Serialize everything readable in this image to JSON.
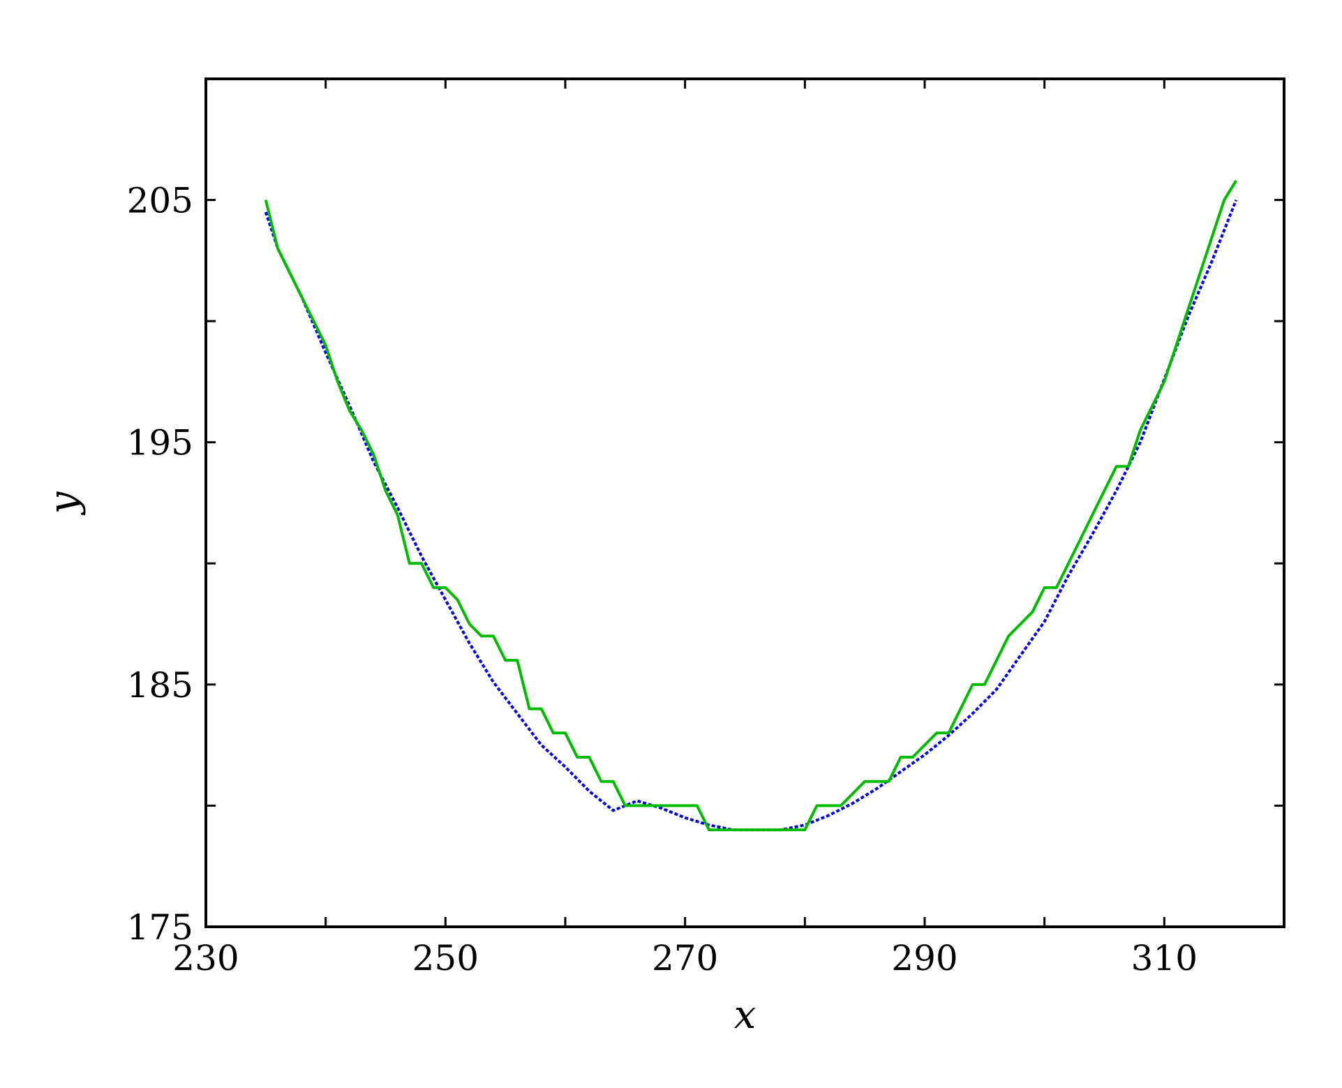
{
  "chart_data": {
    "type": "line",
    "title": "",
    "xlabel": "x",
    "ylabel": "y",
    "xlim": [
      230,
      320
    ],
    "ylim": [
      175,
      210
    ],
    "x_ticks": [
      230,
      250,
      270,
      290,
      310
    ],
    "x_minor_ticks": [
      240,
      260,
      280,
      300
    ],
    "y_ticks": [
      175,
      185,
      195,
      205
    ],
    "y_minor_ticks": [
      180,
      190,
      200
    ],
    "x_tick_labels": [
      "230",
      "250",
      "270",
      "290",
      "310"
    ],
    "y_tick_labels": [
      "175",
      "185",
      "195",
      "205"
    ],
    "grid": false,
    "series": [
      {
        "color": "#0000dd",
        "style": "dotted",
        "x": [
          235,
          236,
          238,
          240,
          242,
          244,
          246,
          248,
          250,
          252,
          254,
          256,
          258,
          260,
          262,
          264,
          266,
          268,
          270,
          272,
          274,
          276,
          278,
          280,
          282,
          284,
          286,
          288,
          290,
          292,
          294,
          296,
          298,
          300,
          302,
          304,
          306,
          308,
          310,
          312,
          314,
          316
        ],
        "y": [
          204.5,
          203.0,
          201.0,
          198.7,
          196.5,
          194.2,
          192.3,
          190.3,
          188.5,
          186.7,
          185.1,
          183.8,
          182.5,
          181.6,
          180.6,
          179.8,
          180.2,
          179.9,
          179.5,
          179.2,
          179.0,
          179.0,
          179.0,
          179.2,
          179.6,
          180.1,
          180.7,
          181.4,
          182.1,
          182.9,
          183.8,
          184.8,
          186.2,
          187.6,
          189.5,
          191.2,
          193.0,
          195.0,
          197.6,
          200.2,
          202.5,
          205.0
        ]
      },
      {
        "color": "#00bb00",
        "style": "solid",
        "x": [
          235,
          235.5,
          236,
          238,
          240,
          241,
          242,
          243,
          244,
          245,
          246,
          247,
          248,
          249,
          250,
          251,
          252,
          253,
          254,
          255,
          256,
          257,
          258,
          259,
          260,
          261,
          262,
          263,
          264,
          265,
          266,
          267,
          268,
          269,
          270,
          271,
          272,
          273,
          274,
          275,
          276,
          277,
          278,
          279,
          280,
          281,
          282,
          283,
          284,
          285,
          286,
          287,
          288,
          289,
          290,
          291,
          292,
          293,
          294,
          295,
          296,
          297,
          298,
          299,
          300,
          301,
          302,
          303,
          304,
          305,
          306,
          307,
          308,
          309,
          310,
          311,
          312,
          313,
          314,
          315,
          316
        ],
        "y": [
          205.0,
          204.0,
          203.0,
          201.0,
          199.0,
          197.5,
          196.3,
          195.5,
          194.5,
          193.0,
          192.0,
          190.0,
          190.0,
          189.0,
          189.0,
          188.5,
          187.5,
          187.0,
          187.0,
          186.0,
          186.0,
          184.0,
          184.0,
          183.0,
          183.0,
          182.0,
          182.0,
          181.0,
          181.0,
          180.0,
          180.0,
          180.0,
          180.0,
          180.0,
          180.0,
          180.0,
          179.0,
          179.0,
          179.0,
          179.0,
          179.0,
          179.0,
          179.0,
          179.0,
          179.0,
          180.0,
          180.0,
          180.0,
          180.5,
          181.0,
          181.0,
          181.0,
          182.0,
          182.0,
          182.5,
          183.0,
          183.0,
          184.0,
          185.0,
          185.0,
          186.0,
          187.0,
          187.5,
          188.0,
          189.0,
          189.0,
          190.0,
          191.0,
          192.0,
          193.0,
          194.0,
          194.0,
          195.5,
          196.5,
          197.5,
          199.0,
          200.5,
          202.0,
          203.5,
          205.0,
          205.8
        ]
      }
    ]
  }
}
